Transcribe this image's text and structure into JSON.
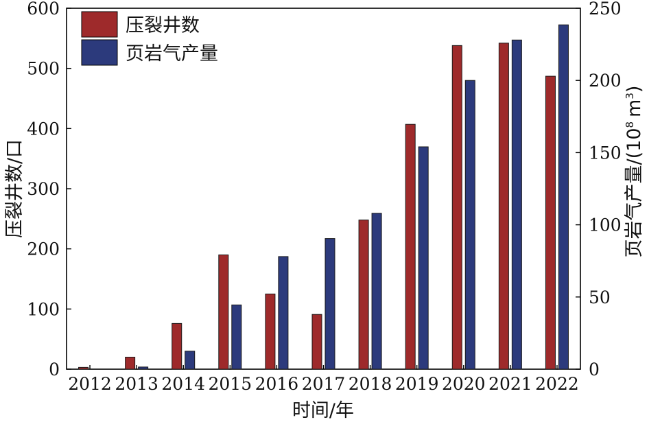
{
  "chart_data": {
    "type": "bar",
    "categories": [
      "2012",
      "2013",
      "2014",
      "2015",
      "2016",
      "2017",
      "2018",
      "2019",
      "2020",
      "2021",
      "2022"
    ],
    "series": [
      {
        "name": "压裂井数",
        "axis": "left",
        "color": "#9e2a2b",
        "values": [
          3,
          20,
          76,
          190,
          125,
          91,
          248,
          407,
          538,
          542,
          487
        ]
      },
      {
        "name": "页岩气产量",
        "axis": "right",
        "color": "#2c3a7c",
        "values": [
          0,
          1.5,
          12.5,
          44.5,
          78,
          90.5,
          108,
          154,
          200,
          228,
          238.5
        ]
      }
    ],
    "xlabel": "时间/年",
    "ylabel_left": "压裂井数/口",
    "ylabel_right_main": "页岩气产量/(10",
    "ylabel_right_exp": "8",
    "ylabel_right_unit": "m",
    "ylabel_right_unit_exp": "3",
    "ylabel_right_close": ")",
    "ylim_left": [
      0,
      600
    ],
    "ylim_right": [
      0,
      250
    ],
    "yticks_left": [
      "0",
      "100",
      "200",
      "300",
      "400",
      "500",
      "600"
    ],
    "yticks_right": [
      "0",
      "50",
      "100",
      "150",
      "200",
      "250"
    ],
    "grid": false,
    "legend_position": "top-left"
  }
}
